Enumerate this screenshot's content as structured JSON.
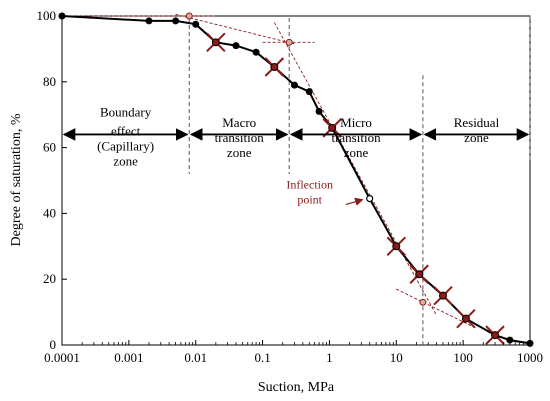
{
  "chart_data": {
    "type": "line",
    "title": "",
    "xlabel": "Suction, MPa",
    "ylabel": "Degree of saturation, %",
    "xscale": "log",
    "xlim": [
      0.0001,
      1000
    ],
    "ylim": [
      0,
      100
    ],
    "xticks": [
      0.0001,
      0.001,
      0.01,
      0.1,
      1,
      10,
      100,
      1000
    ],
    "xtick_labels": [
      "0.0001",
      "0.001",
      "0.01",
      "0.1",
      "1",
      "10",
      "100",
      "1000"
    ],
    "yticks": [
      0,
      20,
      40,
      60,
      80,
      100
    ],
    "ytick_labels": [
      "0",
      "20",
      "40",
      "60",
      "80",
      "100"
    ],
    "grid": false,
    "colors": {
      "series": "#000000",
      "annotation": "#8b1a1a",
      "marker_fill": "#8b1a1a",
      "boundary": "#555555"
    },
    "series": [
      {
        "x": [
          0.0001,
          0.002,
          0.005,
          0.01,
          0.02,
          0.04,
          0.08,
          0.15,
          0.3,
          0.5,
          0.7,
          1.1,
          4,
          10,
          22,
          50,
          110,
          300,
          500,
          1000
        ],
        "y": [
          100,
          98.5,
          98.5,
          97.5,
          92,
          91,
          89,
          84.5,
          79,
          77,
          71,
          66,
          44.5,
          30,
          21.5,
          15,
          8,
          3,
          1.5,
          0.5
        ],
        "highlighted_x": [
          0.0001,
          0.02,
          0.15,
          1.1,
          10,
          22,
          50,
          110,
          300
        ],
        "hollow_x": [
          4
        ]
      }
    ],
    "construction_points": [
      {
        "x": 0.008,
        "y": 100
      },
      {
        "x": 0.25,
        "y": 92
      },
      {
        "x": 25,
        "y": 13
      }
    ],
    "boundaries_x": [
      0.008,
      0.25,
      25,
      1000
    ],
    "zones": [
      {
        "lines": [
          "Boundary",
          "effect",
          "(Capillary)",
          "zone"
        ],
        "x_from": 0.0001,
        "x_to": 0.008,
        "arrow_y": 64
      },
      {
        "lines": [
          "Macro",
          "transition",
          "zone"
        ],
        "x_from": 0.008,
        "x_to": 0.25,
        "arrow_y": 64
      },
      {
        "lines": [
          "Micro",
          "transition",
          "zone"
        ],
        "x_from": 0.25,
        "x_to": 25,
        "arrow_y": 64
      },
      {
        "lines": [
          "Residual",
          "zone"
        ],
        "x_from": 25,
        "x_to": 1000,
        "arrow_y": 64
      }
    ],
    "annotations": [
      {
        "lines": [
          "Inflection",
          "point"
        ],
        "target_x": 4,
        "target_y": 44.5
      }
    ]
  }
}
